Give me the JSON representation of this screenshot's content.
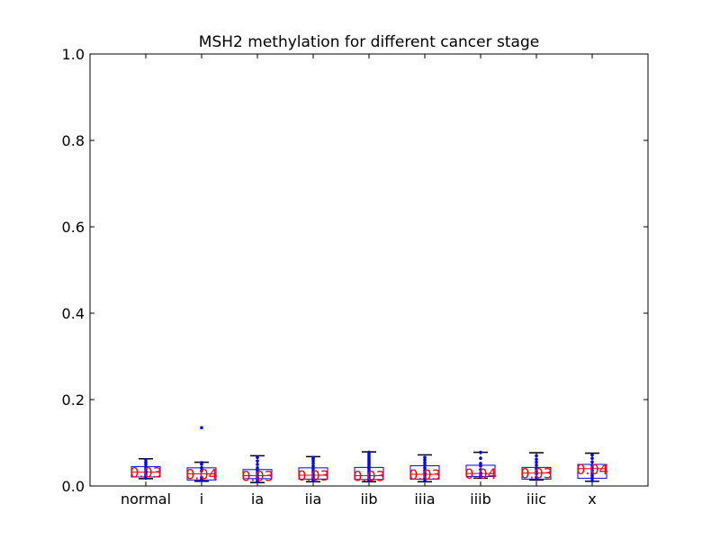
{
  "chart_data": {
    "type": "box",
    "title": "MSH2 methylation for different cancer stage",
    "xlabel": "",
    "ylabel": "",
    "ylim": [
      0.0,
      1.0
    ],
    "yticks": [
      0.0,
      0.2,
      0.4,
      0.6,
      0.8,
      1.0
    ],
    "ytick_labels": [
      "0.0",
      "0.2",
      "0.4",
      "0.6",
      "0.8",
      "1.0"
    ],
    "grid": false,
    "colors": {
      "box": "#0000ff",
      "median": "#ff0000",
      "whisker": "#000000",
      "points": "#0000ff",
      "annotation": "#ff0000"
    },
    "categories": [
      "normal",
      "i",
      "ia",
      "iia",
      "iib",
      "iiia",
      "iiib",
      "iiic",
      "x"
    ],
    "boxes": [
      {
        "label": "normal",
        "whisker_low": 0.017,
        "q1": 0.021,
        "median": 0.032,
        "q3": 0.045,
        "whisker_high": 0.063,
        "annotation": "0.03",
        "points": [
          0.018,
          0.022,
          0.026,
          0.03,
          0.034,
          0.039,
          0.044,
          0.05,
          0.055,
          0.061
        ]
      },
      {
        "label": "i",
        "whisker_low": 0.011,
        "q1": 0.014,
        "median": 0.028,
        "q3": 0.042,
        "whisker_high": 0.055,
        "annotation": "0.04",
        "points": [
          0.013,
          0.016,
          0.02,
          0.035,
          0.042,
          0.05,
          0.054,
          0.135
        ]
      },
      {
        "label": "ia",
        "whisker_low": 0.008,
        "q1": 0.017,
        "median": 0.024,
        "q3": 0.038,
        "whisker_high": 0.07,
        "annotation": "0.03",
        "points": [
          0.01,
          0.015,
          0.02,
          0.024,
          0.03,
          0.036,
          0.042,
          0.05,
          0.058,
          0.066
        ]
      },
      {
        "label": "iia",
        "whisker_low": 0.01,
        "q1": 0.016,
        "median": 0.025,
        "q3": 0.042,
        "whisker_high": 0.068,
        "annotation": "0.03",
        "points": [
          0.012,
          0.016,
          0.02,
          0.025,
          0.03,
          0.035,
          0.04,
          0.046,
          0.052,
          0.058,
          0.063,
          0.066
        ]
      },
      {
        "label": "iib",
        "whisker_low": 0.01,
        "q1": 0.015,
        "median": 0.024,
        "q3": 0.043,
        "whisker_high": 0.079,
        "annotation": "0.03",
        "points": [
          0.012,
          0.016,
          0.02,
          0.024,
          0.028,
          0.032,
          0.036,
          0.04,
          0.044,
          0.048,
          0.052,
          0.056,
          0.06,
          0.064,
          0.069,
          0.074,
          0.078
        ]
      },
      {
        "label": "iiia",
        "whisker_low": 0.01,
        "q1": 0.016,
        "median": 0.027,
        "q3": 0.047,
        "whisker_high": 0.072,
        "annotation": "0.03",
        "points": [
          0.012,
          0.018,
          0.024,
          0.03,
          0.036,
          0.042,
          0.048,
          0.054,
          0.06,
          0.066
        ]
      },
      {
        "label": "iiib",
        "whisker_low": 0.018,
        "q1": 0.022,
        "median": 0.029,
        "q3": 0.048,
        "whisker_high": 0.078,
        "annotation": "0.04",
        "points": [
          0.02,
          0.024,
          0.03,
          0.038,
          0.046,
          0.052,
          0.064,
          0.078
        ]
      },
      {
        "label": "iiic",
        "whisker_low": 0.014,
        "q1": 0.016,
        "median": 0.03,
        "q3": 0.043,
        "whisker_high": 0.077,
        "annotation": "0.03",
        "points": [
          0.015,
          0.02,
          0.028,
          0.034,
          0.04,
          0.048,
          0.055,
          0.062,
          0.07
        ]
      },
      {
        "label": "x",
        "whisker_low": 0.011,
        "q1": 0.018,
        "median": 0.04,
        "q3": 0.05,
        "whisker_high": 0.076,
        "annotation": "0.04",
        "points": [
          0.012,
          0.018,
          0.024,
          0.03,
          0.036,
          0.042,
          0.048,
          0.056,
          0.064,
          0.072
        ]
      }
    ]
  }
}
